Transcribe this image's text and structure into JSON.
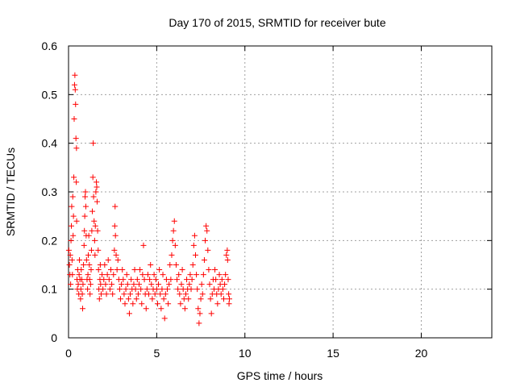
{
  "chart_data": {
    "type": "scatter",
    "title": "Day 170 of 2015, SRMTID for receiver bute",
    "xlabel": "GPS time / hours",
    "ylabel": "SRMTID / TECUs",
    "xlim": [
      0,
      24
    ],
    "ylim": [
      0,
      0.6
    ],
    "xticks": [
      0,
      5,
      10,
      15,
      20
    ],
    "xtick_labels": [
      "0",
      "5",
      "10",
      "15",
      "20"
    ],
    "yticks": [
      0,
      0.1,
      0.2,
      0.3,
      0.4,
      0.5,
      0.6
    ],
    "ytick_labels": [
      "0",
      "0.1",
      "0.2",
      "0.3",
      "0.4",
      "0.5",
      "0.6"
    ],
    "grid": true,
    "marker": "+",
    "color": "#ff0000",
    "series": [
      {
        "name": "SRMTID",
        "points": [
          [
            0.02,
            0.18
          ],
          [
            0.05,
            0.15
          ],
          [
            0.08,
            0.13
          ],
          [
            0.1,
            0.17
          ],
          [
            0.12,
            0.11
          ],
          [
            0.14,
            0.2
          ],
          [
            0.16,
            0.23
          ],
          [
            0.18,
            0.27
          ],
          [
            0.2,
            0.16
          ],
          [
            0.22,
            0.13
          ],
          [
            0.24,
            0.29
          ],
          [
            0.26,
            0.21
          ],
          [
            0.28,
            0.25
          ],
          [
            0.3,
            0.33
          ],
          [
            0.32,
            0.45
          ],
          [
            0.34,
            0.52
          ],
          [
            0.36,
            0.54
          ],
          [
            0.38,
            0.51
          ],
          [
            0.4,
            0.48
          ],
          [
            0.42,
            0.41
          ],
          [
            0.44,
            0.32
          ],
          [
            0.45,
            0.39
          ],
          [
            0.46,
            0.24
          ],
          [
            0.48,
            0.12
          ],
          [
            0.5,
            0.1
          ],
          [
            0.52,
            0.14
          ],
          [
            0.55,
            0.11
          ],
          [
            0.58,
            0.09
          ],
          [
            0.6,
            0.13
          ],
          [
            0.62,
            0.16
          ],
          [
            0.65,
            0.12
          ],
          [
            0.68,
            0.08
          ],
          [
            0.7,
            0.1
          ],
          [
            0.72,
            0.14
          ],
          [
            0.75,
            0.12
          ],
          [
            0.78,
            0.09
          ],
          [
            0.8,
            0.06
          ],
          [
            0.82,
            0.11
          ],
          [
            0.85,
            0.15
          ],
          [
            0.88,
            0.19
          ],
          [
            0.9,
            0.22
          ],
          [
            0.92,
            0.25
          ],
          [
            0.94,
            0.29
          ],
          [
            0.96,
            0.3
          ],
          [
            0.98,
            0.27
          ],
          [
            1.0,
            0.21
          ],
          [
            1.02,
            0.16
          ],
          [
            1.05,
            0.12
          ],
          [
            1.08,
            0.1
          ],
          [
            1.1,
            0.13
          ],
          [
            1.12,
            0.17
          ],
          [
            1.15,
            0.21
          ],
          [
            1.18,
            0.15
          ],
          [
            1.2,
            0.12
          ],
          [
            1.22,
            0.09
          ],
          [
            1.25,
            0.11
          ],
          [
            1.28,
            0.14
          ],
          [
            1.3,
            0.18
          ],
          [
            1.32,
            0.22
          ],
          [
            1.35,
            0.26
          ],
          [
            1.38,
            0.33
          ],
          [
            1.4,
            0.4
          ],
          [
            1.42,
            0.29
          ],
          [
            1.45,
            0.24
          ],
          [
            1.48,
            0.2
          ],
          [
            1.5,
            0.17
          ],
          [
            1.52,
            0.23
          ],
          [
            1.55,
            0.3
          ],
          [
            1.58,
            0.32
          ],
          [
            1.6,
            0.31
          ],
          [
            1.62,
            0.28
          ],
          [
            1.65,
            0.22
          ],
          [
            1.68,
            0.18
          ],
          [
            1.7,
            0.14
          ],
          [
            1.72,
            0.1
          ],
          [
            1.75,
            0.08
          ],
          [
            1.78,
            0.12
          ],
          [
            1.8,
            0.15
          ],
          [
            1.82,
            0.11
          ],
          [
            1.85,
            0.09
          ],
          [
            1.9,
            0.13
          ],
          [
            1.95,
            0.1
          ],
          [
            2.0,
            0.12
          ],
          [
            2.05,
            0.15
          ],
          [
            2.1,
            0.11
          ],
          [
            2.15,
            0.09
          ],
          [
            2.2,
            0.13
          ],
          [
            2.25,
            0.16
          ],
          [
            2.3,
            0.12
          ],
          [
            2.35,
            0.1
          ],
          [
            2.4,
            0.14
          ],
          [
            2.45,
            0.11
          ],
          [
            2.5,
            0.09
          ],
          [
            2.55,
            0.13
          ],
          [
            2.6,
            0.18
          ],
          [
            2.62,
            0.23
          ],
          [
            2.64,
            0.27
          ],
          [
            2.66,
            0.21
          ],
          [
            2.7,
            0.17
          ],
          [
            2.75,
            0.14
          ],
          [
            2.8,
            0.16
          ],
          [
            2.85,
            0.12
          ],
          [
            2.9,
            0.1
          ],
          [
            2.95,
            0.08
          ],
          [
            3.0,
            0.11
          ],
          [
            3.05,
            0.14
          ],
          [
            3.1,
            0.12
          ],
          [
            3.15,
            0.09
          ],
          [
            3.2,
            0.07
          ],
          [
            3.25,
            0.1
          ],
          [
            3.3,
            0.13
          ],
          [
            3.35,
            0.11
          ],
          [
            3.4,
            0.08
          ],
          [
            3.45,
            0.05
          ],
          [
            3.5,
            0.09
          ],
          [
            3.55,
            0.12
          ],
          [
            3.6,
            0.1
          ],
          [
            3.65,
            0.07
          ],
          [
            3.7,
            0.11
          ],
          [
            3.75,
            0.14
          ],
          [
            3.8,
            0.1
          ],
          [
            3.85,
            0.08
          ],
          [
            3.9,
            0.12
          ],
          [
            3.95,
            0.09
          ],
          [
            4.0,
            0.11
          ],
          [
            4.05,
            0.14
          ],
          [
            4.1,
            0.1
          ],
          [
            4.15,
            0.07
          ],
          [
            4.2,
            0.13
          ],
          [
            4.25,
            0.19
          ],
          [
            4.3,
            0.12
          ],
          [
            4.35,
            0.09
          ],
          [
            4.4,
            0.06
          ],
          [
            4.45,
            0.1
          ],
          [
            4.5,
            0.13
          ],
          [
            4.55,
            0.09
          ],
          [
            4.6,
            0.12
          ],
          [
            4.65,
            0.15
          ],
          [
            4.7,
            0.11
          ],
          [
            4.75,
            0.08
          ],
          [
            4.8,
            0.1
          ],
          [
            4.85,
            0.13
          ],
          [
            4.9,
            0.09
          ],
          [
            4.95,
            0.12
          ],
          [
            5.0,
            0.1
          ],
          [
            5.05,
            0.07
          ],
          [
            5.1,
            0.11
          ],
          [
            5.15,
            0.14
          ],
          [
            5.2,
            0.09
          ],
          [
            5.25,
            0.06
          ],
          [
            5.3,
            0.1
          ],
          [
            5.35,
            0.13
          ],
          [
            5.4,
            0.08
          ],
          [
            5.45,
            0.04
          ],
          [
            5.5,
            0.09
          ],
          [
            5.55,
            0.12
          ],
          [
            5.6,
            0.1
          ],
          [
            5.65,
            0.07
          ],
          [
            5.7,
            0.11
          ],
          [
            5.75,
            0.15
          ],
          [
            5.8,
            0.12
          ],
          [
            5.85,
            0.17
          ],
          [
            5.9,
            0.2
          ],
          [
            5.95,
            0.22
          ],
          [
            6.0,
            0.24
          ],
          [
            6.05,
            0.19
          ],
          [
            6.1,
            0.15
          ],
          [
            6.15,
            0.12
          ],
          [
            6.2,
            0.1
          ],
          [
            6.25,
            0.13
          ],
          [
            6.3,
            0.09
          ],
          [
            6.35,
            0.07
          ],
          [
            6.4,
            0.11
          ],
          [
            6.45,
            0.14
          ],
          [
            6.5,
            0.1
          ],
          [
            6.55,
            0.08
          ],
          [
            6.6,
            0.06
          ],
          [
            6.65,
            0.09
          ],
          [
            6.7,
            0.12
          ],
          [
            6.75,
            0.1
          ],
          [
            6.8,
            0.08
          ],
          [
            6.85,
            0.11
          ],
          [
            6.9,
            0.13
          ],
          [
            6.95,
            0.1
          ],
          [
            7.0,
            0.12
          ],
          [
            7.05,
            0.15
          ],
          [
            7.1,
            0.19
          ],
          [
            7.15,
            0.21
          ],
          [
            7.2,
            0.17
          ],
          [
            7.25,
            0.13
          ],
          [
            7.3,
            0.1
          ],
          [
            7.35,
            0.06
          ],
          [
            7.4,
            0.03
          ],
          [
            7.45,
            0.05
          ],
          [
            7.5,
            0.08
          ],
          [
            7.55,
            0.11
          ],
          [
            7.6,
            0.09
          ],
          [
            7.65,
            0.13
          ],
          [
            7.7,
            0.16
          ],
          [
            7.75,
            0.2
          ],
          [
            7.8,
            0.23
          ],
          [
            7.85,
            0.22
          ],
          [
            7.9,
            0.18
          ],
          [
            7.95,
            0.14
          ],
          [
            8.0,
            0.11
          ],
          [
            8.05,
            0.08
          ],
          [
            8.1,
            0.05
          ],
          [
            8.15,
            0.09
          ],
          [
            8.2,
            0.12
          ],
          [
            8.25,
            0.1
          ],
          [
            8.3,
            0.14
          ],
          [
            8.35,
            0.12
          ],
          [
            8.4,
            0.09
          ],
          [
            8.45,
            0.07
          ],
          [
            8.5,
            0.1
          ],
          [
            8.55,
            0.13
          ],
          [
            8.6,
            0.11
          ],
          [
            8.65,
            0.09
          ],
          [
            8.7,
            0.12
          ],
          [
            8.75,
            0.1
          ],
          [
            8.8,
            0.08
          ],
          [
            8.85,
            0.11
          ],
          [
            8.9,
            0.13
          ],
          [
            8.95,
            0.17
          ],
          [
            9.0,
            0.18
          ],
          [
            9.02,
            0.16
          ],
          [
            9.05,
            0.12
          ],
          [
            9.08,
            0.09
          ],
          [
            9.1,
            0.07
          ],
          [
            9.12,
            0.08
          ]
        ]
      }
    ]
  }
}
